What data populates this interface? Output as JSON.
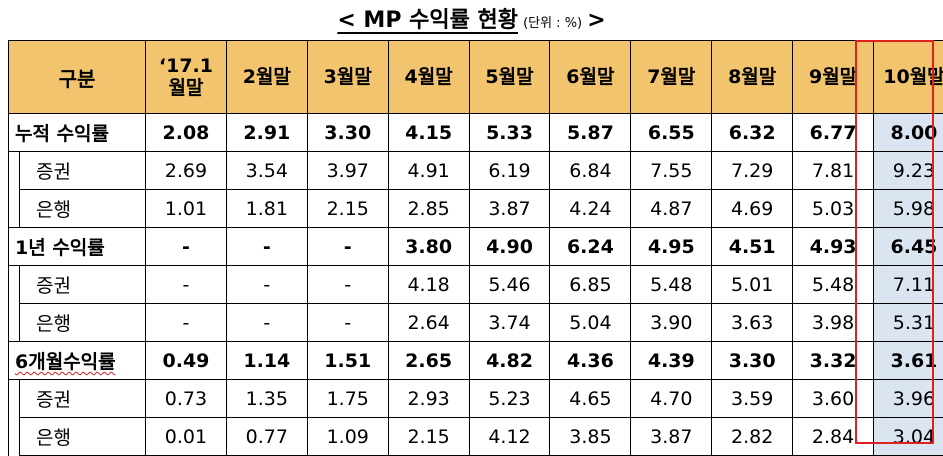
{
  "title": {
    "main": "< MP 수익률 현황",
    "unit": "(단위 : %)",
    "close": " >"
  },
  "table": {
    "header": {
      "label": "구분",
      "columns": [
        [
          "‘17.1",
          "월말"
        ],
        [
          "2월말"
        ],
        [
          "3월말"
        ],
        [
          "4월말"
        ],
        [
          "5월말"
        ],
        [
          "6월말"
        ],
        [
          "7월말"
        ],
        [
          "8월말"
        ],
        [
          "9월말"
        ],
        [
          "10월말"
        ]
      ]
    },
    "groups": [
      {
        "label": "누적 수익률",
        "values": [
          "2.08",
          "2.91",
          "3.30",
          "4.15",
          "5.33",
          "5.87",
          "6.55",
          "6.32",
          "6.77",
          "8.00"
        ],
        "subrows": [
          {
            "label": "증권",
            "values": [
              "2.69",
              "3.54",
              "3.97",
              "4.91",
              "6.19",
              "6.84",
              "7.55",
              "7.29",
              "7.81",
              "9.23"
            ]
          },
          {
            "label": "은행",
            "values": [
              "1.01",
              "1.81",
              "2.15",
              "2.85",
              "3.87",
              "4.24",
              "4.87",
              "4.69",
              "5.03",
              "5.98"
            ]
          }
        ]
      },
      {
        "label": "1년 수익률",
        "values": [
          "-",
          "-",
          "-",
          "3.80",
          "4.90",
          "6.24",
          "4.95",
          "4.51",
          "4.93",
          "6.45"
        ],
        "subrows": [
          {
            "label": "증권",
            "values": [
              "-",
              "-",
              "-",
              "4.18",
              "5.46",
              "6.85",
              "5.48",
              "5.01",
              "5.48",
              "7.11"
            ]
          },
          {
            "label": "은행",
            "values": [
              "-",
              "-",
              "-",
              "2.64",
              "3.74",
              "5.04",
              "3.90",
              "3.63",
              "3.98",
              "5.31"
            ]
          }
        ]
      },
      {
        "label": "6개월수익률",
        "values": [
          "0.49",
          "1.14",
          "1.51",
          "2.65",
          "4.82",
          "4.36",
          "4.39",
          "3.30",
          "3.32",
          "3.61"
        ],
        "subrows": [
          {
            "label": "증권",
            "values": [
              "0.73",
              "1.35",
              "1.75",
              "2.93",
              "5.23",
              "4.65",
              "4.70",
              "3.59",
              "3.60",
              "3.96"
            ]
          },
          {
            "label": "은행",
            "values": [
              "0.01",
              "0.77",
              "1.09",
              "2.15",
              "4.12",
              "3.85",
              "3.87",
              "2.82",
              "2.84",
              "3.04"
            ]
          }
        ]
      }
    ]
  },
  "colors": {
    "header_bg": "#f2c46d",
    "highlight_col_bg": "#dbe5f1",
    "highlight_border": "#e02020"
  }
}
